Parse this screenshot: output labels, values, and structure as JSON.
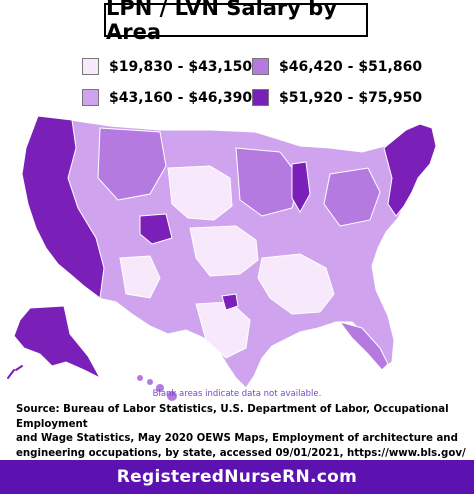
{
  "title": "LPN / LVN Salary by Area",
  "legend": [
    {
      "label": "$19,830 - $43,150",
      "color": "#f7e8fb"
    },
    {
      "label": "$46,420 - $51,860",
      "color": "#b57ae0"
    },
    {
      "label": "$43,160 - $46,390",
      "color": "#cfa3ee"
    },
    {
      "label": "$51,920 - $75,950",
      "color": "#7a1fb8"
    }
  ],
  "note": "Blank areas indicate data not available.",
  "source": {
    "line1": "Source: Bureau of Labor Statistics, U.S. Department of Labor, Occupational Employment",
    "line2": "and Wage Statistics, May 2020  OEWS Maps, Employment of architecture and",
    "line3": "engineering occupations, by state, accessed 09/01/2021, https://www.bls.gov/"
  },
  "footer": "RegisteredNurseRN.com",
  "map": {
    "region_colors": {
      "dark": "#7a1fb8",
      "mid": "#b57ae0",
      "light": "#cfa3ee",
      "pale": "#f7e8fb",
      "border": "#ffffff"
    }
  }
}
